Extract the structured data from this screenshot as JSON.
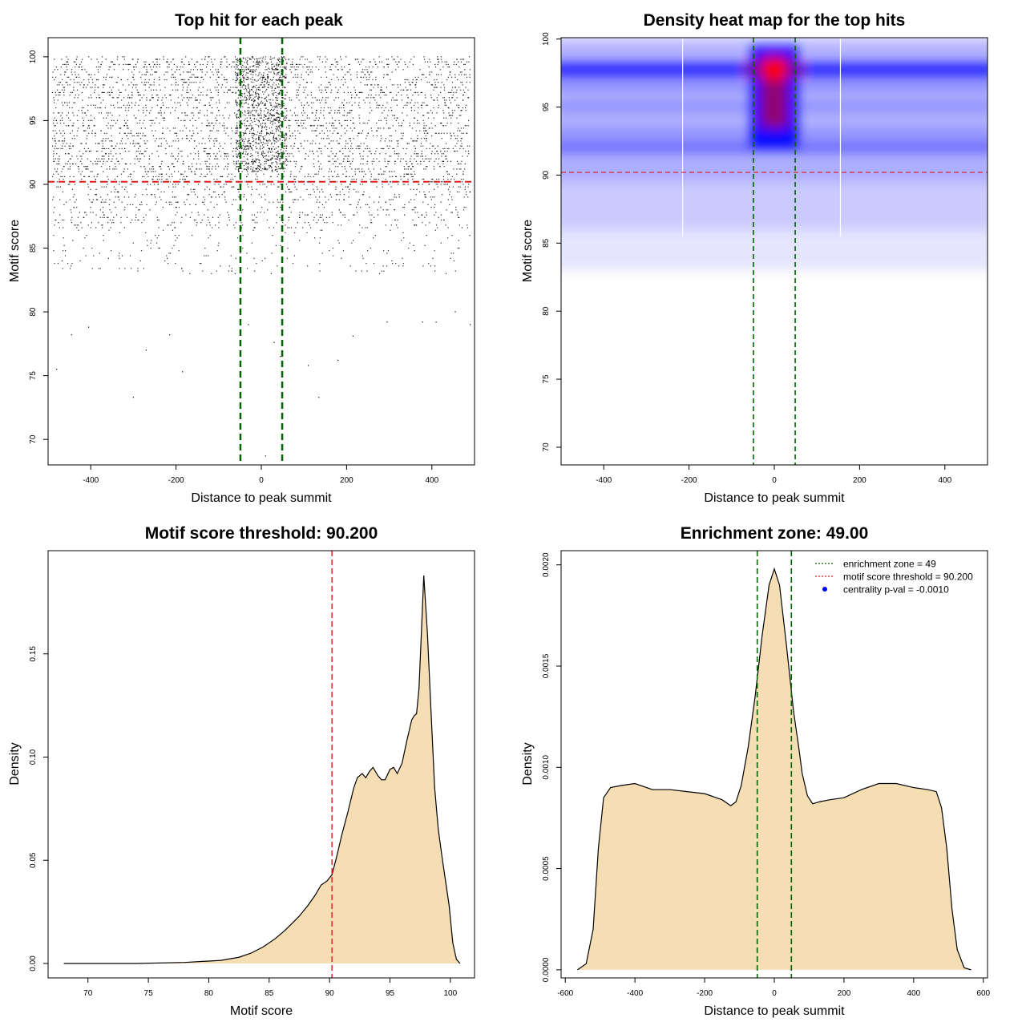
{
  "colors": {
    "threshold_line": "#e31a1c",
    "zone_line": "#006400",
    "density_fill": "#f5deb3",
    "points": "#000000",
    "heat_low": "#ffffff",
    "heat_mid": "#0000ff",
    "heat_high": "#ff0000",
    "centrality_marker": "#0000ff"
  },
  "chart_data": [
    {
      "type": "scatter",
      "title": "Top hit for each peak",
      "xlabel": "Distance to peak summit",
      "ylabel": "Motif score",
      "xlim": [
        -500,
        500
      ],
      "ylim": [
        68,
        101.5
      ],
      "xticks": [
        -400,
        -200,
        0,
        200,
        400
      ],
      "yticks": [
        70,
        75,
        80,
        85,
        90,
        95,
        100
      ],
      "threshold": 90.2,
      "zone": [
        -49,
        49
      ],
      "points_summary": "dense hits across x -490..490, scores mostly 90-100, sparse low-score hits down to ~68.7",
      "outliers": [
        {
          "x": -300,
          "y": 73.3
        },
        {
          "x": -480,
          "y": 75.5
        },
        {
          "x": -270,
          "y": 77.0
        },
        {
          "x": -185,
          "y": 75.3
        },
        {
          "x": -445,
          "y": 78.2
        },
        {
          "x": -215,
          "y": 78.2
        },
        {
          "x": -405,
          "y": 78.8
        },
        {
          "x": 10,
          "y": 68.7
        },
        {
          "x": 135,
          "y": 73.3
        },
        {
          "x": 110,
          "y": 75.8
        },
        {
          "x": 180,
          "y": 76.2
        },
        {
          "x": 45,
          "y": 76.5
        },
        {
          "x": 30,
          "y": 77.6
        },
        {
          "x": 215,
          "y": 78.1
        },
        {
          "x": -30,
          "y": 79.0
        },
        {
          "x": 295,
          "y": 79.2
        },
        {
          "x": 378,
          "y": 79.2
        },
        {
          "x": 410,
          "y": 79.2
        },
        {
          "x": 490,
          "y": 79.0
        },
        {
          "x": 455,
          "y": 80.0
        }
      ]
    },
    {
      "type": "heatmap",
      "title": "Density heat map for the top hits",
      "xlabel": "Distance to peak summit",
      "ylabel": "Motif score",
      "xlim": [
        -500,
        500
      ],
      "ylim": [
        68.7,
        100.1
      ],
      "xticks": [
        -400,
        -200,
        0,
        200,
        400
      ],
      "yticks": [
        70,
        75,
        80,
        85,
        90,
        95,
        100
      ],
      "threshold": 90.2,
      "zone": [
        -49,
        49
      ],
      "hotspot": {
        "x": 0,
        "y": 97.7
      }
    },
    {
      "type": "area",
      "title": "Motif score threshold: 90.200",
      "xlabel": "Motif score",
      "ylabel": "Density",
      "xlim": [
        66.7,
        102.0
      ],
      "ylim": [
        -0.007,
        0.2
      ],
      "xticks": [
        70,
        75,
        80,
        85,
        90,
        95,
        100
      ],
      "yticks": [
        0.0,
        0.05,
        0.1,
        0.15
      ],
      "ytick_labels": [
        "0.00",
        "0.05",
        "0.10",
        "0.15"
      ],
      "threshold": 90.2,
      "x": [
        68,
        74,
        78,
        81,
        82.5,
        83.5,
        84.5,
        85.5,
        86.3,
        87,
        87.5,
        88.2,
        88.8,
        89.3,
        89.8,
        90.2,
        90.6,
        91.0,
        91.5,
        92.0,
        92.3,
        92.7,
        93.0,
        93.3,
        93.6,
        94.0,
        94.3,
        94.6,
        95.0,
        95.3,
        95.6,
        96.0,
        96.4,
        96.8,
        97.0,
        97.2,
        97.4,
        97.6,
        97.8,
        98.1,
        98.4,
        98.7,
        99.0,
        99.3,
        99.6,
        99.9,
        100.2,
        100.5,
        100.8
      ],
      "y": [
        0.0,
        0.0,
        0.0005,
        0.0015,
        0.003,
        0.005,
        0.008,
        0.012,
        0.016,
        0.02,
        0.023,
        0.028,
        0.033,
        0.038,
        0.04,
        0.043,
        0.052,
        0.062,
        0.073,
        0.085,
        0.09,
        0.092,
        0.09,
        0.093,
        0.095,
        0.091,
        0.089,
        0.089,
        0.094,
        0.095,
        0.092,
        0.097,
        0.108,
        0.118,
        0.12,
        0.121,
        0.133,
        0.16,
        0.188,
        0.16,
        0.122,
        0.085,
        0.065,
        0.052,
        0.04,
        0.028,
        0.01,
        0.002,
        0.0
      ]
    },
    {
      "type": "area",
      "title": "Enrichment zone: 49.00",
      "xlabel": "Distance to peak summit",
      "ylabel": "Density",
      "xlim": [
        -612,
        612
      ],
      "ylim": [
        -4e-05,
        0.00207
      ],
      "xticks": [
        -600,
        -400,
        -200,
        0,
        200,
        400,
        600
      ],
      "yticks": [
        0.0,
        0.0005,
        0.001,
        0.0015,
        0.002
      ],
      "ytick_labels": [
        "0.0000",
        "0.0005",
        "0.0010",
        "0.0015",
        "0.0020"
      ],
      "zone": [
        -49,
        49
      ],
      "x": [
        -565,
        -540,
        -520,
        -505,
        -490,
        -470,
        -440,
        -400,
        -350,
        -300,
        -250,
        -200,
        -150,
        -125,
        -110,
        -95,
        -75,
        -55,
        -35,
        -15,
        0,
        15,
        35,
        55,
        70,
        80,
        95,
        110,
        130,
        160,
        200,
        250,
        300,
        350,
        400,
        440,
        465,
        480,
        495,
        510,
        525,
        545,
        565
      ],
      "y": [
        0.0,
        3e-05,
        0.0002,
        0.0006,
        0.00085,
        0.0009,
        0.00091,
        0.00092,
        0.00089,
        0.00089,
        0.00088,
        0.00087,
        0.00084,
        0.00081,
        0.00083,
        0.00091,
        0.0011,
        0.00135,
        0.00165,
        0.0019,
        0.00198,
        0.0019,
        0.0016,
        0.00128,
        0.0011,
        0.00097,
        0.00086,
        0.00082,
        0.00083,
        0.00084,
        0.00085,
        0.00089,
        0.00092,
        0.00092,
        0.0009,
        0.00089,
        0.00088,
        0.0008,
        0.0006,
        0.0003,
        0.0001,
        1e-05,
        0.0
      ],
      "legend": [
        {
          "label": "enrichment zone = 49",
          "kind": "dotted",
          "color": "#006400"
        },
        {
          "label": "motif score threshold = 90.200",
          "kind": "dotted",
          "color": "#e31a1c"
        },
        {
          "label": "centrality p-val = -0.0010",
          "kind": "dot",
          "color": "#0000ff"
        }
      ],
      "legend_position": "top-right"
    }
  ]
}
